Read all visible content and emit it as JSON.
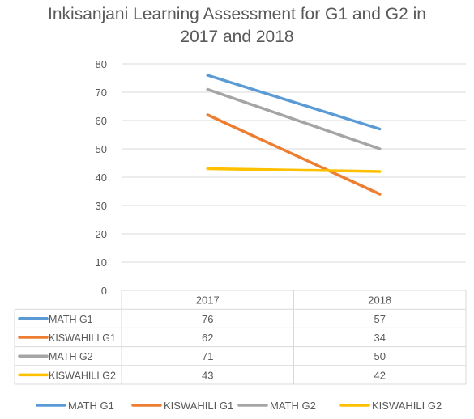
{
  "chart_data": {
    "type": "line",
    "title_lines": [
      "Inkisanjani Learning Assessment for G1 and G2 in",
      "2017 and 2018"
    ],
    "categories": [
      "2017",
      "2018"
    ],
    "ylim": [
      0,
      80
    ],
    "yticks": [
      0,
      10,
      20,
      30,
      40,
      50,
      60,
      70,
      80
    ],
    "grid": true,
    "legend_placement": "bottom",
    "data_table": true,
    "series": [
      {
        "name": "MATH G1",
        "values": [
          76,
          57
        ],
        "color": "#5B9BD5"
      },
      {
        "name": "KISWAHILI G1",
        "values": [
          62,
          34
        ],
        "color": "#ED7D31"
      },
      {
        "name": "MATH G2",
        "values": [
          71,
          50
        ],
        "color": "#A5A5A5"
      },
      {
        "name": "KISWAHILI G2",
        "values": [
          43,
          42
        ],
        "color": "#FFC000"
      }
    ]
  }
}
